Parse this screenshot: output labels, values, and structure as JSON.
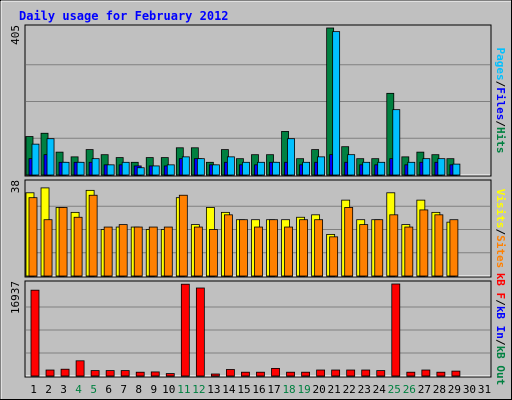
{
  "chart_data": [
    {
      "type": "bar",
      "title": "Daily usage for February 2012",
      "ymax_label": "405",
      "categories": [
        "1",
        "2",
        "3",
        "4",
        "5",
        "6",
        "7",
        "8",
        "9",
        "10",
        "11",
        "12",
        "13",
        "14",
        "15",
        "16",
        "17",
        "18",
        "19",
        "20",
        "21",
        "22",
        "23",
        "24",
        "25",
        "26",
        "27",
        "28",
        "29",
        "30",
        "31"
      ],
      "weekend_days": [
        "4",
        "5",
        "11",
        "12",
        "18",
        "19",
        "25",
        "26"
      ],
      "legend": [
        {
          "text": "Pages",
          "color": "#00C0FF"
        },
        {
          "text": "/",
          "color": "#000000"
        },
        {
          "text": "Files",
          "color": "#0000FF"
        },
        {
          "text": "/",
          "color": "#000000"
        },
        {
          "text": "Hits",
          "color": "#008040"
        }
      ],
      "ylim": [
        0,
        405
      ],
      "grid": true,
      "series": [
        {
          "name": "Hits",
          "color": "#008040",
          "values": [
            106,
            115,
            63,
            50,
            70,
            56,
            48,
            35,
            48,
            48,
            75,
            75,
            35,
            70,
            45,
            56,
            56,
            120,
            45,
            70,
            405,
            78,
            45,
            45,
            225,
            50,
            63,
            56,
            45,
            0,
            0
          ]
        },
        {
          "name": "Files",
          "color": "#0000FF",
          "values": [
            45,
            56,
            35,
            35,
            35,
            28,
            28,
            25,
            25,
            25,
            45,
            45,
            28,
            35,
            28,
            28,
            35,
            35,
            28,
            35,
            56,
            35,
            28,
            28,
            45,
            28,
            35,
            35,
            28,
            0,
            0
          ]
        },
        {
          "name": "Pages",
          "color": "#00C0FF",
          "values": [
            85,
            100,
            35,
            35,
            45,
            28,
            35,
            20,
            25,
            28,
            50,
            45,
            28,
            50,
            35,
            35,
            35,
            100,
            35,
            50,
            395,
            56,
            35,
            35,
            180,
            35,
            45,
            45,
            30,
            0,
            0
          ]
        }
      ]
    },
    {
      "type": "bar",
      "ymax_label": "38",
      "legend": [
        {
          "text": "Visits",
          "color": "#FFFF00"
        },
        {
          "text": "/",
          "color": "#000000"
        },
        {
          "text": "Sites",
          "color": "#FF8000"
        }
      ],
      "ylim": [
        0,
        38
      ],
      "grid": true,
      "series": [
        {
          "name": "Visits",
          "color": "#FFFF00",
          "values": [
            34,
            36,
            28,
            26,
            35,
            19,
            20,
            20,
            19,
            19,
            32,
            21,
            28,
            26,
            23,
            23,
            23,
            23,
            24,
            25,
            17,
            31,
            23,
            23,
            34,
            21,
            31,
            26,
            22,
            0,
            0
          ]
        },
        {
          "name": "Sites",
          "color": "#FF8000",
          "values": [
            32,
            23,
            28,
            24,
            33,
            20,
            21,
            20,
            20,
            20,
            33,
            20,
            19,
            25,
            23,
            20,
            23,
            20,
            23,
            23,
            16,
            28,
            21,
            23,
            25,
            20,
            27,
            25,
            23,
            0,
            0
          ]
        }
      ]
    },
    {
      "type": "bar",
      "ymax_label": "16937",
      "legend": [
        {
          "text": "kB F",
          "color": "#FF0000"
        },
        {
          "text": "/",
          "color": "#000000"
        },
        {
          "text": "kB In",
          "color": "#0000FF"
        },
        {
          "text": "/",
          "color": "#000000"
        },
        {
          "text": "kB Out",
          "color": "#008040"
        }
      ],
      "ylim": [
        0,
        16937
      ],
      "grid": true,
      "series": [
        {
          "name": "kB F",
          "color": "#FF0000",
          "values": [
            15800,
            1100,
            1250,
            2800,
            1000,
            1000,
            1000,
            700,
            750,
            450,
            16900,
            16200,
            350,
            1200,
            700,
            700,
            1400,
            700,
            700,
            1100,
            1100,
            1100,
            1100,
            1000,
            16937,
            700,
            1100,
            700,
            900,
            0,
            0
          ]
        }
      ]
    }
  ]
}
